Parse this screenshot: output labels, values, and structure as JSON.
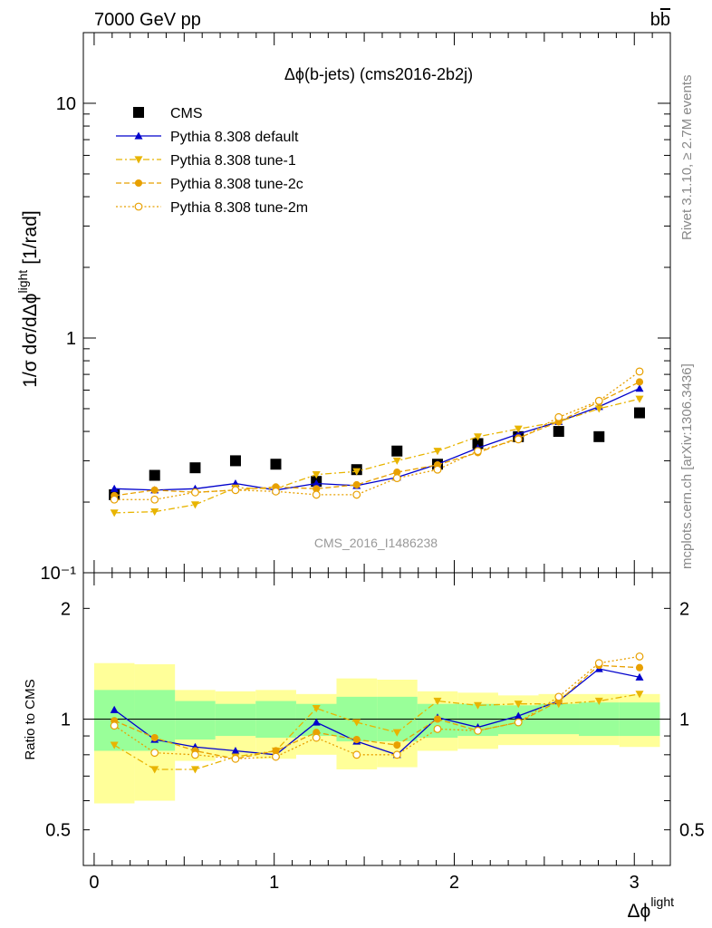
{
  "header": {
    "left": "7000 GeV pp",
    "right_base": "b",
    "right_bar": "b"
  },
  "side_labels": {
    "rivet": "Rivet 3.1.10, ≥ 2.7M events",
    "mcplots": "mcplots.cern.ch [arXiv:1306.3436]"
  },
  "watermark": "CMS_2016_I1486238",
  "colors": {
    "data": "#000000",
    "default": "#0000cc",
    "tunes": "#e8a000",
    "band_inner": "#99ff99",
    "band_outer": "#ffff99"
  },
  "chart_data": [
    {
      "type": "line",
      "title": "Δϕ(b-jets) (cms2016-2b2j)",
      "ylabel": {
        "prefix": "1/σ dσ/dΔϕ",
        "sup": "light",
        "unit": "[1/rad]"
      },
      "y_scale": "log",
      "ylim": [
        0.1,
        20
      ],
      "xlim": [
        -0.06,
        3.2
      ],
      "y_ticks": [
        {
          "value": 10,
          "label": "10"
        },
        {
          "value": 1,
          "label": "1"
        },
        {
          "value": 0.1,
          "label": "10⁻¹"
        }
      ],
      "legend_position": "top-left",
      "x": [
        0.112,
        0.336,
        0.561,
        0.785,
        1.009,
        1.234,
        1.458,
        1.682,
        1.907,
        2.131,
        2.356,
        2.58,
        2.804,
        3.029
      ],
      "bin_edges": [
        0.0,
        0.224,
        0.449,
        0.673,
        0.897,
        1.122,
        1.346,
        1.571,
        1.795,
        2.019,
        2.244,
        2.468,
        2.692,
        2.917,
        3.142
      ],
      "series": [
        {
          "name": "CMS",
          "style": "data",
          "marker": "square",
          "values": [
            0.215,
            0.26,
            0.28,
            0.3,
            0.29,
            0.245,
            0.275,
            0.33,
            0.29,
            0.355,
            0.38,
            0.4,
            0.38,
            0.48
          ]
        },
        {
          "name": "Pythia 8.308 default",
          "style": "solid",
          "marker": "triangle-up",
          "color": "#0000cc",
          "values": [
            0.228,
            0.225,
            0.228,
            0.24,
            0.225,
            0.24,
            0.235,
            0.255,
            0.29,
            0.34,
            0.39,
            0.44,
            0.51,
            0.61
          ]
        },
        {
          "name": "Pythia 8.308 tune-1",
          "style": "dashdot",
          "marker": "triangle-down",
          "color": "#e8b400",
          "values": [
            0.18,
            0.182,
            0.195,
            0.23,
            0.228,
            0.262,
            0.27,
            0.3,
            0.33,
            0.38,
            0.41,
            0.44,
            0.5,
            0.55
          ]
        },
        {
          "name": "Pythia 8.308 tune-2c",
          "style": "dashed",
          "marker": "circle",
          "color": "#e8a000",
          "values": [
            0.213,
            0.225,
            0.22,
            0.225,
            0.232,
            0.228,
            0.237,
            0.268,
            0.288,
            0.325,
            0.375,
            0.44,
            0.535,
            0.65
          ]
        },
        {
          "name": "Pythia 8.308 tune-2m",
          "style": "dotted",
          "marker": "circle-open",
          "color": "#e8a000",
          "values": [
            0.205,
            0.205,
            0.22,
            0.225,
            0.222,
            0.215,
            0.215,
            0.253,
            0.275,
            0.33,
            0.37,
            0.46,
            0.54,
            0.72
          ]
        }
      ]
    },
    {
      "type": "line",
      "ylabel": "Ratio to CMS",
      "xlabel": {
        "base": "Δϕ",
        "sup": "light"
      },
      "y_scale": "log",
      "ylim": [
        0.4,
        2.5
      ],
      "xlim": [
        -0.06,
        3.2
      ],
      "y_ticks": [
        {
          "value": 2,
          "label": "2"
        },
        {
          "value": 1,
          "label": "1"
        },
        {
          "value": 0.5,
          "label": "0.5"
        }
      ],
      "x_ticks": [
        {
          "value": 0,
          "label": "0"
        },
        {
          "value": 1,
          "label": "1"
        },
        {
          "value": 2,
          "label": "2"
        },
        {
          "value": 3,
          "label": "3"
        }
      ],
      "bands": {
        "inner": [
          [
            0.82,
            1.2
          ],
          [
            0.82,
            1.2
          ],
          [
            0.88,
            1.12
          ],
          [
            0.9,
            1.1
          ],
          [
            0.89,
            1.12
          ],
          [
            0.9,
            1.1
          ],
          [
            0.87,
            1.15
          ],
          [
            0.87,
            1.15
          ],
          [
            0.89,
            1.1
          ],
          [
            0.9,
            1.1
          ],
          [
            0.91,
            1.09
          ],
          [
            0.91,
            1.1
          ],
          [
            0.9,
            1.11
          ],
          [
            0.9,
            1.11
          ]
        ],
        "outer": [
          [
            0.59,
            1.42
          ],
          [
            0.6,
            1.41
          ],
          [
            0.77,
            1.2
          ],
          [
            0.79,
            1.19
          ],
          [
            0.78,
            1.2
          ],
          [
            0.8,
            1.17
          ],
          [
            0.73,
            1.29
          ],
          [
            0.74,
            1.28
          ],
          [
            0.82,
            1.19
          ],
          [
            0.83,
            1.18
          ],
          [
            0.85,
            1.16
          ],
          [
            0.85,
            1.17
          ],
          [
            0.85,
            1.17
          ],
          [
            0.84,
            1.17
          ]
        ]
      },
      "series": [
        {
          "name": "Pythia 8.308 default",
          "style": "solid",
          "marker": "triangle-up",
          "color": "#0000cc",
          "values": [
            1.06,
            0.88,
            0.84,
            0.82,
            0.8,
            0.98,
            0.87,
            0.8,
            1.01,
            0.95,
            1.02,
            1.12,
            1.37,
            1.3
          ]
        },
        {
          "name": "Pythia 8.308 tune-1",
          "style": "dashdot",
          "marker": "triangle-down",
          "color": "#e8b400",
          "values": [
            0.85,
            0.73,
            0.73,
            0.79,
            0.82,
            1.07,
            0.98,
            0.92,
            1.12,
            1.09,
            1.1,
            1.1,
            1.12,
            1.17
          ]
        },
        {
          "name": "Pythia 8.308 tune-2c",
          "style": "dashed",
          "marker": "circle",
          "color": "#e8a000",
          "values": [
            0.99,
            0.89,
            0.82,
            0.78,
            0.82,
            0.92,
            0.88,
            0.85,
            1.0,
            0.93,
            0.98,
            1.12,
            1.4,
            1.38
          ]
        },
        {
          "name": "Pythia 8.308 tune-2m",
          "style": "dotted",
          "marker": "circle-open",
          "color": "#e8a000",
          "values": [
            0.96,
            0.81,
            0.8,
            0.78,
            0.79,
            0.89,
            0.8,
            0.8,
            0.94,
            0.93,
            0.98,
            1.15,
            1.42,
            1.48
          ]
        }
      ]
    }
  ]
}
